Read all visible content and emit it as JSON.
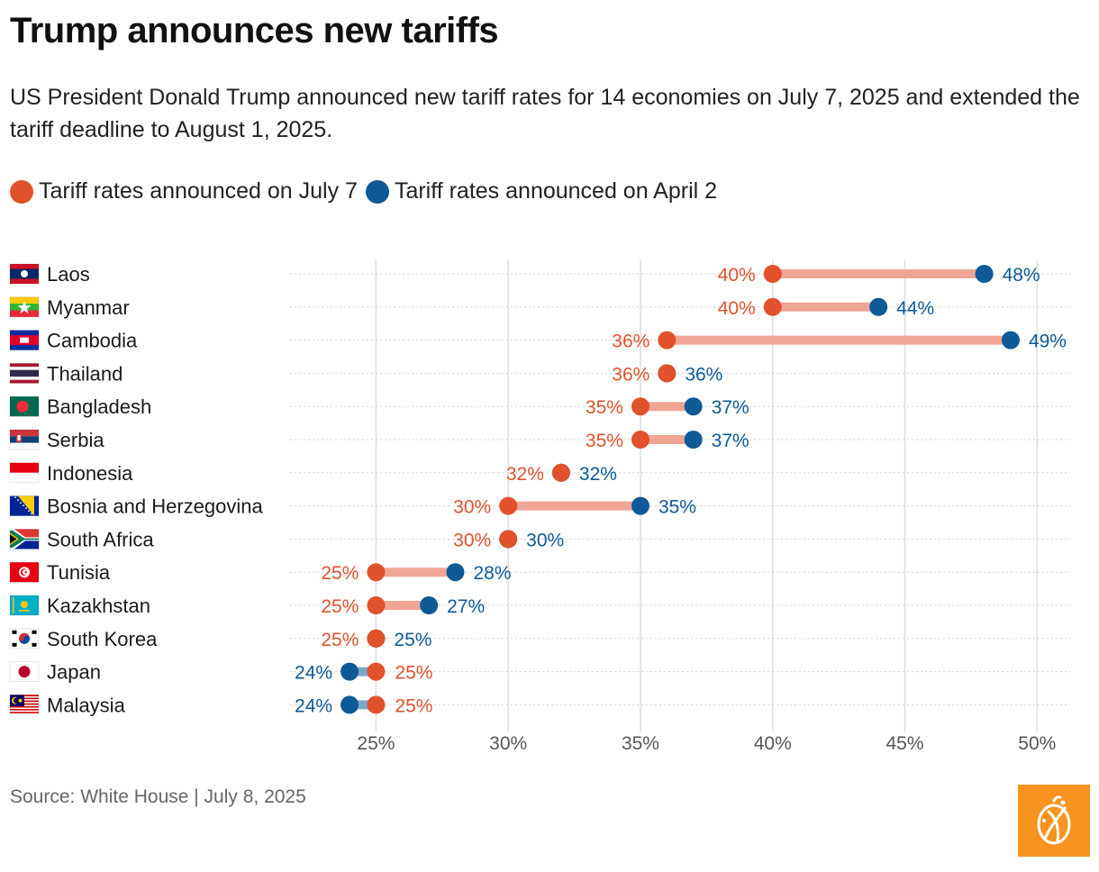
{
  "title": "Trump announces new tariffs",
  "subtitle": "US President Donald Trump announced new tariff rates for 14 economies on July 7, 2025 and extended the tariff deadline to August 1, 2025.",
  "legend": {
    "july": "Tariff rates announced on July 7",
    "april": "Tariff rates announced on April 2"
  },
  "source": "Source: White House | July 8, 2025",
  "colors": {
    "july": "#e0522c",
    "april": "#0d5a96",
    "bar_up": "#f0a595",
    "bar_down": "#7aa7cb",
    "grid": "#dddddd",
    "logo_bg": "#f7931e"
  },
  "chart_data": {
    "type": "dumbbell",
    "xlim": [
      21.75,
      51.25
    ],
    "xticks": [
      25,
      30,
      35,
      40,
      45,
      50
    ],
    "xtick_labels": [
      "25%",
      "30%",
      "35%",
      "40%",
      "45%",
      "50%"
    ],
    "series": [
      {
        "name": "Tariff rates announced on July 7",
        "key": "july"
      },
      {
        "name": "Tariff rates announced on April 2",
        "key": "april"
      }
    ],
    "rows": [
      {
        "country": "Laos",
        "flag": "laos",
        "july": 40,
        "april": 48
      },
      {
        "country": "Myanmar",
        "flag": "myanmar",
        "july": 40,
        "april": 44
      },
      {
        "country": "Cambodia",
        "flag": "cambodia",
        "july": 36,
        "april": 49
      },
      {
        "country": "Thailand",
        "flag": "thailand",
        "july": 36,
        "april": 36
      },
      {
        "country": "Bangladesh",
        "flag": "bangladesh",
        "july": 35,
        "april": 37
      },
      {
        "country": "Serbia",
        "flag": "serbia",
        "july": 35,
        "april": 37
      },
      {
        "country": "Indonesia",
        "flag": "indonesia",
        "july": 32,
        "april": 32
      },
      {
        "country": "Bosnia and Herzegovina",
        "flag": "bosnia",
        "july": 30,
        "april": 35
      },
      {
        "country": "South Africa",
        "flag": "south-africa",
        "july": 30,
        "april": 30
      },
      {
        "country": "Tunisia",
        "flag": "tunisia",
        "july": 25,
        "april": 28
      },
      {
        "country": "Kazakhstan",
        "flag": "kazakhstan",
        "july": 25,
        "april": 27
      },
      {
        "country": "South Korea",
        "flag": "south-korea",
        "july": 25,
        "april": 25
      },
      {
        "country": "Japan",
        "flag": "japan",
        "july": 25,
        "april": 24
      },
      {
        "country": "Malaysia",
        "flag": "malaysia",
        "july": 25,
        "april": 24
      }
    ]
  }
}
